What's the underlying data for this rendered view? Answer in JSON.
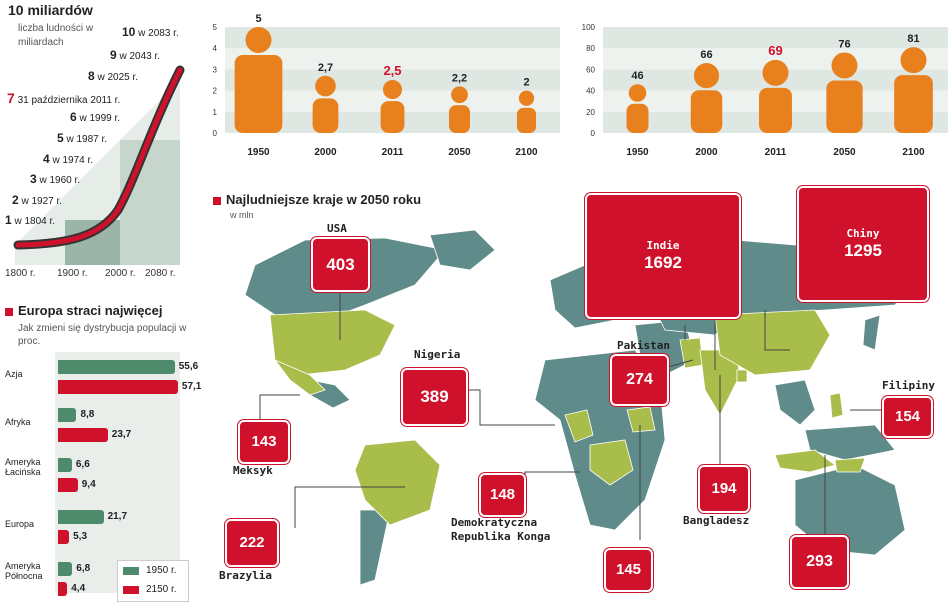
{
  "timeline": {
    "title": "10 miliardów",
    "subtitle": "liczba ludności w miliardach",
    "events": [
      {
        "num": "1",
        "text": "w 1804 r."
      },
      {
        "num": "2",
        "text": "w 1927 r."
      },
      {
        "num": "3",
        "text": "w 1960 r."
      },
      {
        "num": "4",
        "text": "w 1974 r."
      },
      {
        "num": "5",
        "text": "w 1987 r."
      },
      {
        "num": "6",
        "text": "w 1999 r."
      },
      {
        "num": "7",
        "text": "31 października 2011 r."
      },
      {
        "num": "8",
        "text": "w 2025 r."
      },
      {
        "num": "9",
        "text": "w 2043 r."
      },
      {
        "num": "10",
        "text": "w 2083 r."
      }
    ],
    "axis": [
      "1800 r.",
      "1900 r.",
      "2000 r.",
      "2080 r."
    ]
  },
  "fertility_chart": {
    "type": "bar",
    "categories": [
      "1950",
      "2000",
      "2011",
      "2050",
      "2100"
    ],
    "values": [
      5,
      2.7,
      2.5,
      2.2,
      2
    ],
    "labels": [
      "5",
      "2,7",
      "2,5",
      "2,2",
      "2"
    ],
    "highlight_index": 2,
    "ylim": [
      0,
      5
    ],
    "yticks": [
      "0",
      "1",
      "2",
      "3",
      "4",
      "5"
    ],
    "bar_color": "#e8801e",
    "highlight_color": "#d0112b"
  },
  "life_chart": {
    "type": "bar",
    "categories": [
      "1950",
      "2000",
      "2011",
      "2050",
      "2100"
    ],
    "values": [
      46,
      66,
      69,
      76,
      81
    ],
    "labels": [
      "46",
      "66",
      "69",
      "76",
      "81"
    ],
    "highlight_index": 2,
    "ylim": [
      0,
      100
    ],
    "yticks": [
      "0",
      "20",
      "40",
      "60",
      "80",
      "100"
    ]
  },
  "europe": {
    "title": "Europa straci najwięcej",
    "subtitle": "Jak zmieni się dystrybucja populacji w proc.",
    "legend": [
      "1950 r.",
      "2150 r."
    ],
    "colors": {
      "y1950": "#4e8a6c",
      "y2150": "#d0112b"
    },
    "rows": [
      {
        "name": "Azja",
        "v1950": "55,6",
        "v2150": "57,1",
        "n1950": 55.6,
        "n2150": 57.1
      },
      {
        "name": "Afryka",
        "v1950": "8,8",
        "v2150": "23,7",
        "n1950": 8.8,
        "n2150": 23.7
      },
      {
        "name": "Ameryka Łacińska",
        "v1950": "6,6",
        "v2150": "9,4",
        "n1950": 6.6,
        "n2150": 9.4
      },
      {
        "name": "Europa",
        "v1950": "21,7",
        "v2150": "5,3",
        "n1950": 21.7,
        "n2150": 5.3
      },
      {
        "name": "Ameryka Północna",
        "v1950": "6,8",
        "v2150": "4,4",
        "n1950": 6.8,
        "n2150": 4.4
      }
    ]
  },
  "map": {
    "title": "Najludniejsze kraje w 2050 roku",
    "subtitle": "w mln",
    "countries": [
      {
        "name": "USA",
        "value": "403"
      },
      {
        "name": "Indie",
        "value": "1692"
      },
      {
        "name": "Chiny",
        "value": "1295"
      },
      {
        "name": "Nigeria",
        "value": "389"
      },
      {
        "name": "Pakistan",
        "value": "274"
      },
      {
        "name": "Filipiny",
        "value": "154"
      },
      {
        "name": "Meksyk",
        "value": "143"
      },
      {
        "name": "Bangladesz",
        "value": "194"
      },
      {
        "name": "Demokratyczna Republika Konga",
        "value": "148"
      },
      {
        "name": "Brazylia",
        "value": "222"
      },
      {
        "name": "",
        "value": "145"
      },
      {
        "name": "",
        "value": "293"
      }
    ]
  }
}
